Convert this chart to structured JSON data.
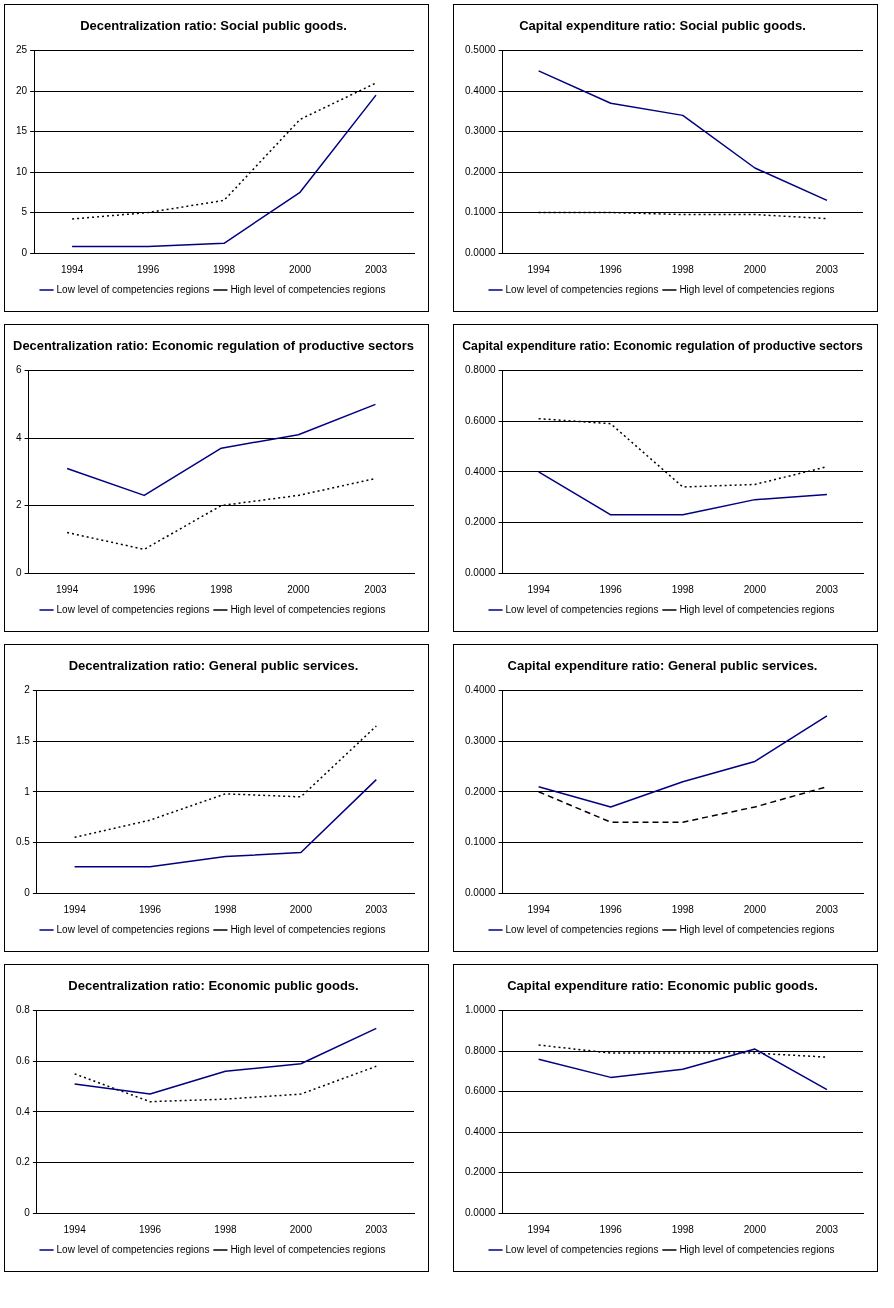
{
  "chart_data": [
    {
      "type": "line",
      "title": "Decentralization ratio: Social public goods.",
      "categories": [
        "1994",
        "1996",
        "1998",
        "2000",
        "2003"
      ],
      "ylim": [
        0,
        25
      ],
      "yticks": [
        0,
        5,
        10,
        15,
        20,
        25
      ],
      "grid": "y",
      "legend": "bottom",
      "marker": "none",
      "series": [
        {
          "name": "Low level of competencies regions",
          "color": "#000080",
          "line_style": "solid",
          "values": [
            0.8,
            0.8,
            1.2,
            7.5,
            19.5
          ]
        },
        {
          "name": "High level of competencies regions",
          "color": "#000000",
          "line_style": "dotted",
          "values": [
            4.2,
            5,
            6.5,
            16.5,
            21
          ]
        }
      ]
    },
    {
      "type": "line",
      "title": "Capital expenditure ratio: Social public goods.",
      "categories": [
        "1994",
        "1996",
        "1998",
        "2000",
        "2003"
      ],
      "ylim": [
        0,
        0.5
      ],
      "yticks": [
        {
          "value": 0,
          "label": "0.0000"
        },
        {
          "value": 0.1,
          "label": "0.1000"
        },
        {
          "value": 0.2,
          "label": "0.2000"
        },
        {
          "value": 0.3,
          "label": "0.3000"
        },
        {
          "value": 0.4,
          "label": "0.4000"
        },
        {
          "value": 0.5,
          "label": "0.5000"
        }
      ],
      "grid": "y",
      "legend": "bottom",
      "marker": "none",
      "series": [
        {
          "name": "Low level of competencies regions",
          "color": "#000080",
          "line_style": "solid",
          "values": [
            0.45,
            0.37,
            0.34,
            0.21,
            0.13
          ]
        },
        {
          "name": "High level of competencies regions",
          "color": "#000000",
          "line_style": "dotted",
          "values": [
            0.1,
            0.1,
            0.095,
            0.095,
            0.085
          ]
        }
      ]
    },
    {
      "type": "line",
      "title": "Decentralization ratio: Economic regulation of productive sectors",
      "categories": [
        "1994",
        "1996",
        "1998",
        "2000",
        "2003"
      ],
      "ylim": [
        0,
        6
      ],
      "yticks": [
        0,
        2,
        4,
        6
      ],
      "grid": "y",
      "legend": "bottom",
      "marker": "none",
      "series": [
        {
          "name": "Low level of competencies regions",
          "color": "#000080",
          "line_style": "solid",
          "values": [
            3.1,
            2.3,
            3.7,
            4.1,
            5.0
          ]
        },
        {
          "name": "High level of competencies regions",
          "color": "#000000",
          "line_style": "dotted",
          "values": [
            1.2,
            0.7,
            2.0,
            2.3,
            2.8
          ]
        }
      ]
    },
    {
      "type": "line",
      "title": "Capital expenditure ratio: Economic regulation of productive sectors",
      "categories": [
        "1994",
        "1996",
        "1998",
        "2000",
        "2003"
      ],
      "ylim": [
        0,
        0.8
      ],
      "yticks": [
        {
          "value": 0,
          "label": "0.0000"
        },
        {
          "value": 0.2,
          "label": "0.2000"
        },
        {
          "value": 0.4,
          "label": "0.4000"
        },
        {
          "value": 0.6,
          "label": "0.6000"
        },
        {
          "value": 0.8,
          "label": "0.8000"
        }
      ],
      "grid": "y",
      "legend": "bottom",
      "marker": "none",
      "series": [
        {
          "name": "Low level of competencies regions",
          "color": "#000080",
          "line_style": "solid",
          "values": [
            0.4,
            0.23,
            0.23,
            0.29,
            0.31
          ]
        },
        {
          "name": "High level of competencies regions",
          "color": "#000000",
          "line_style": "dotted",
          "values": [
            0.61,
            0.59,
            0.34,
            0.35,
            0.42
          ]
        }
      ]
    },
    {
      "type": "line",
      "title": "Decentralization ratio: General public services.",
      "categories": [
        "1994",
        "1996",
        "1998",
        "2000",
        "2003"
      ],
      "ylim": [
        0,
        2
      ],
      "yticks": [
        0,
        0.5,
        1,
        1.5,
        2
      ],
      "grid": "y",
      "legend": "bottom",
      "marker": "none",
      "series": [
        {
          "name": "Low level of competencies regions",
          "color": "#000080",
          "line_style": "solid",
          "values": [
            0.26,
            0.26,
            0.36,
            0.4,
            1.12
          ]
        },
        {
          "name": "High level of competencies regions",
          "color": "#000000",
          "line_style": "dotted",
          "values": [
            0.55,
            0.72,
            0.98,
            0.95,
            1.65
          ]
        }
      ]
    },
    {
      "type": "line",
      "title": "Capital expenditure ratio: General public services.",
      "categories": [
        "1994",
        "1996",
        "1998",
        "2000",
        "2003"
      ],
      "ylim": [
        0,
        0.4
      ],
      "yticks": [
        {
          "value": 0,
          "label": "0.0000"
        },
        {
          "value": 0.1,
          "label": "0.1000"
        },
        {
          "value": 0.2,
          "label": "0.2000"
        },
        {
          "value": 0.3,
          "label": "0.3000"
        },
        {
          "value": 0.4,
          "label": "0.4000"
        }
      ],
      "grid": "y",
      "legend": "bottom",
      "marker": "none",
      "series": [
        {
          "name": "Low level of competencies regions",
          "color": "#000080",
          "line_style": "solid",
          "values": [
            0.21,
            0.17,
            0.22,
            0.26,
            0.35
          ]
        },
        {
          "name": "High level of competencies regions",
          "color": "#000000",
          "line_style": "dashed",
          "values": [
            0.2,
            0.14,
            0.14,
            0.17,
            0.21
          ]
        }
      ]
    },
    {
      "type": "line",
      "title": "Decentralization ratio: Economic public goods.",
      "categories": [
        "1994",
        "1996",
        "1998",
        "2000",
        "2003"
      ],
      "ylim": [
        0,
        0.8
      ],
      "yticks": [
        0,
        0.2,
        0.4,
        0.6,
        0.8
      ],
      "grid": "y",
      "legend": "bottom",
      "marker": "none",
      "series": [
        {
          "name": "Low level of competencies regions",
          "color": "#000080",
          "line_style": "solid",
          "values": [
            0.51,
            0.47,
            0.56,
            0.59,
            0.73
          ]
        },
        {
          "name": "High level of competencies regions",
          "color": "#000000",
          "line_style": "dotted",
          "values": [
            0.55,
            0.44,
            0.45,
            0.47,
            0.58
          ]
        }
      ]
    },
    {
      "type": "line",
      "title": "Capital expenditure ratio: Economic public goods.",
      "categories": [
        "1994",
        "1996",
        "1998",
        "2000",
        "2003"
      ],
      "ylim": [
        0,
        1
      ],
      "yticks": [
        {
          "value": 0,
          "label": "0.0000"
        },
        {
          "value": 0.2,
          "label": "0.2000"
        },
        {
          "value": 0.4,
          "label": "0.4000"
        },
        {
          "value": 0.6,
          "label": "0.6000"
        },
        {
          "value": 0.8,
          "label": "0.8000"
        },
        {
          "value": 1,
          "label": "1.0000"
        }
      ],
      "grid": "y",
      "legend": "bottom",
      "marker": "none",
      "series": [
        {
          "name": "Low level of competencies regions",
          "color": "#000080",
          "line_style": "solid",
          "values": [
            0.76,
            0.67,
            0.71,
            0.81,
            0.61
          ]
        },
        {
          "name": "High level of competencies regions",
          "color": "#000000",
          "line_style": "dotted",
          "values": [
            0.83,
            0.79,
            0.79,
            0.79,
            0.77
          ]
        }
      ]
    }
  ]
}
